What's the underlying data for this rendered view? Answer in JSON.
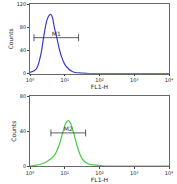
{
  "chart_data": [
    {
      "type": "line",
      "x_label": "FL1-H",
      "y_label": "Counts",
      "log": "x",
      "grid": false,
      "color": "#3a3ad0",
      "x": [
        1,
        1.5,
        2,
        2.5,
        3,
        3.5,
        4,
        4.5,
        5,
        6,
        7,
        8,
        10,
        13,
        16,
        20,
        30,
        50,
        100,
        1000,
        10000
      ],
      "values": [
        2,
        8,
        30,
        65,
        90,
        100,
        102,
        95,
        80,
        60,
        42,
        30,
        16,
        8,
        4,
        2,
        1,
        0,
        0,
        0,
        0
      ],
      "xlim": [
        1,
        10000
      ],
      "xticks": [
        {
          "value": 1,
          "label": "10⁰"
        },
        {
          "value": 10,
          "label": "10¹"
        },
        {
          "value": 100,
          "label": "10²"
        },
        {
          "value": 1000,
          "label": "10³"
        },
        {
          "value": 10000,
          "label": "10⁴"
        }
      ],
      "ylim": [
        0,
        120
      ],
      "yticks": [
        0,
        40,
        80,
        120
      ],
      "gate": {
        "label": "M1",
        "xlim": [
          1.3,
          25
        ],
        "y": 62
      }
    },
    {
      "type": "line",
      "x_label": "FL1-H",
      "y_label": "Counts",
      "log": "x",
      "grid": false,
      "color": "#3fcf3f",
      "x": [
        1,
        2,
        3,
        5,
        7,
        9,
        11,
        13,
        15,
        18,
        22,
        27,
        35,
        50,
        80,
        150,
        1000,
        10000
      ],
      "values": [
        0,
        2,
        5,
        12,
        25,
        40,
        50,
        52,
        48,
        38,
        25,
        14,
        6,
        2,
        1,
        0,
        0,
        0
      ],
      "xlim": [
        1,
        10000
      ],
      "xticks": [
        {
          "value": 1,
          "label": "10⁰"
        },
        {
          "value": 10,
          "label": "10¹"
        },
        {
          "value": 100,
          "label": "10²"
        },
        {
          "value": 1000,
          "label": "10³"
        },
        {
          "value": 10000,
          "label": "10⁴"
        }
      ],
      "ylim": [
        0,
        80
      ],
      "yticks": [
        0,
        40,
        80
      ],
      "gate": {
        "label": "M2",
        "xlim": [
          4,
          40
        ],
        "y": 38
      }
    }
  ]
}
